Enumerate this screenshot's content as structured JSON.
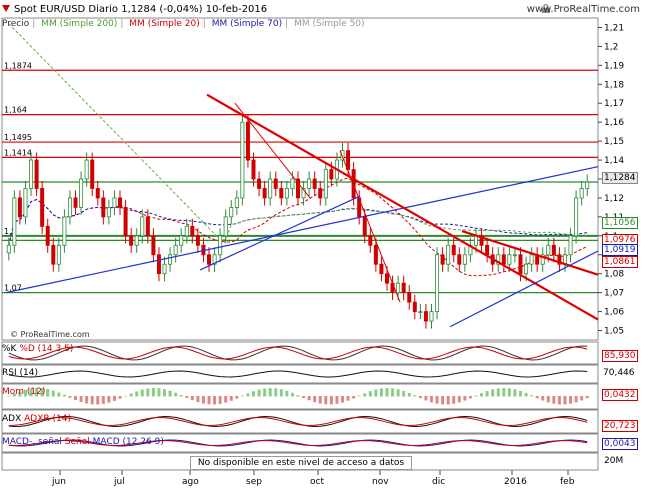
{
  "header": {
    "title": "Spot EUR/USD   Diario   1,1284 (-0,04%)   10-feb-2016",
    "site": "www.ProRealTime.com"
  },
  "legend": {
    "price": "Precio",
    "ma200": "MM (Simple 200)",
    "ma20": "MM (Simple 20)",
    "ma70": "MM (Simple 70)",
    "ma50": "MM (Simple 50)"
  },
  "copyright": "© ProRealTime.com",
  "indicators": {
    "stoch": {
      "label_k": "%K",
      "label_d": "%D (14 3 5)",
      "value": "85,930"
    },
    "rsi": {
      "label": "RSI (14)",
      "value": "70,446"
    },
    "mom": {
      "label": "Mom (12)",
      "value": "0,0432"
    },
    "adx": {
      "label_adx": "ADX",
      "label_adxr": "ADXR (14)",
      "value": "20,723"
    },
    "macd": {
      "label_macd": "MACD-, señal",
      "label_signal": "Señal",
      "label_main": "MACD (12 26 9)",
      "value": "0,0043"
    },
    "volume": {
      "notice": "No disponible en este nivel de acceso a datos",
      "scale": "20M"
    }
  },
  "price_tags": {
    "last": "1,1284",
    "r1": "1,1056",
    "r2": "1,0976",
    "r3": "1,0919",
    "r4": "1,0861"
  },
  "level_labels": [
    "1,1874",
    "1,164",
    "1,1495",
    "1,1414",
    "1,1",
    "1,07"
  ],
  "colors": {
    "up": "#2e8b3a",
    "down": "#d00000",
    "hline_red": "#e00000",
    "hline_green": "#2c8a2c",
    "trend_blue": "#2030d0",
    "ma20": "#cc0000",
    "ma70": "#1a1aaa",
    "ma200": "#66aa44"
  },
  "chart_data": {
    "type": "candlestick",
    "symbol": "Spot EUR/USD",
    "timeframe": "Diario",
    "ylim": [
      1.045,
      1.215
    ],
    "y_ticks": [
      "1,05",
      "1,06",
      "1,07",
      "1,08",
      "1,09",
      "1,1",
      "1,11",
      "1,12",
      "1,13",
      "1,14",
      "1,15",
      "1,16",
      "1,17",
      "1,18",
      "1,19",
      "1,2",
      "1,21"
    ],
    "x_labels": [
      "jun",
      "jul",
      "ago",
      "sep",
      "oct",
      "nov",
      "dic",
      "2016",
      "feb"
    ],
    "close_series": [
      1.095,
      1.12,
      1.11,
      1.125,
      1.14,
      1.125,
      1.105,
      1.095,
      1.085,
      1.095,
      1.11,
      1.12,
      1.115,
      1.13,
      1.14,
      1.125,
      1.12,
      1.11,
      1.115,
      1.12,
      1.115,
      1.1,
      1.095,
      1.1,
      1.11,
      1.1,
      1.09,
      1.08,
      1.085,
      1.09,
      1.095,
      1.1,
      1.105,
      1.1,
      1.095,
      1.09,
      1.085,
      1.09,
      1.1,
      1.11,
      1.115,
      1.12,
      1.16,
      1.14,
      1.13,
      1.125,
      1.12,
      1.13,
      1.125,
      1.12,
      1.125,
      1.13,
      1.12,
      1.125,
      1.13,
      1.125,
      1.12,
      1.135,
      1.13,
      1.14,
      1.145,
      1.135,
      1.12,
      1.11,
      1.1,
      1.095,
      1.085,
      1.08,
      1.075,
      1.07,
      1.075,
      1.07,
      1.065,
      1.06,
      1.06,
      1.055,
      1.06,
      1.09,
      1.085,
      1.095,
      1.09,
      1.085,
      1.09,
      1.095,
      1.1,
      1.095,
      1.09,
      1.085,
      1.09,
      1.085,
      1.09,
      1.09,
      1.08,
      1.085,
      1.09,
      1.085,
      1.09,
      1.095,
      1.09,
      1.085,
      1.09,
      1.1,
      1.12,
      1.125,
      1.1284
    ],
    "hlines_red": [
      1.1874,
      1.164,
      1.1495,
      1.1414
    ],
    "hlines_green": [
      1.1,
      1.07,
      1.1284,
      1.0976
    ]
  }
}
